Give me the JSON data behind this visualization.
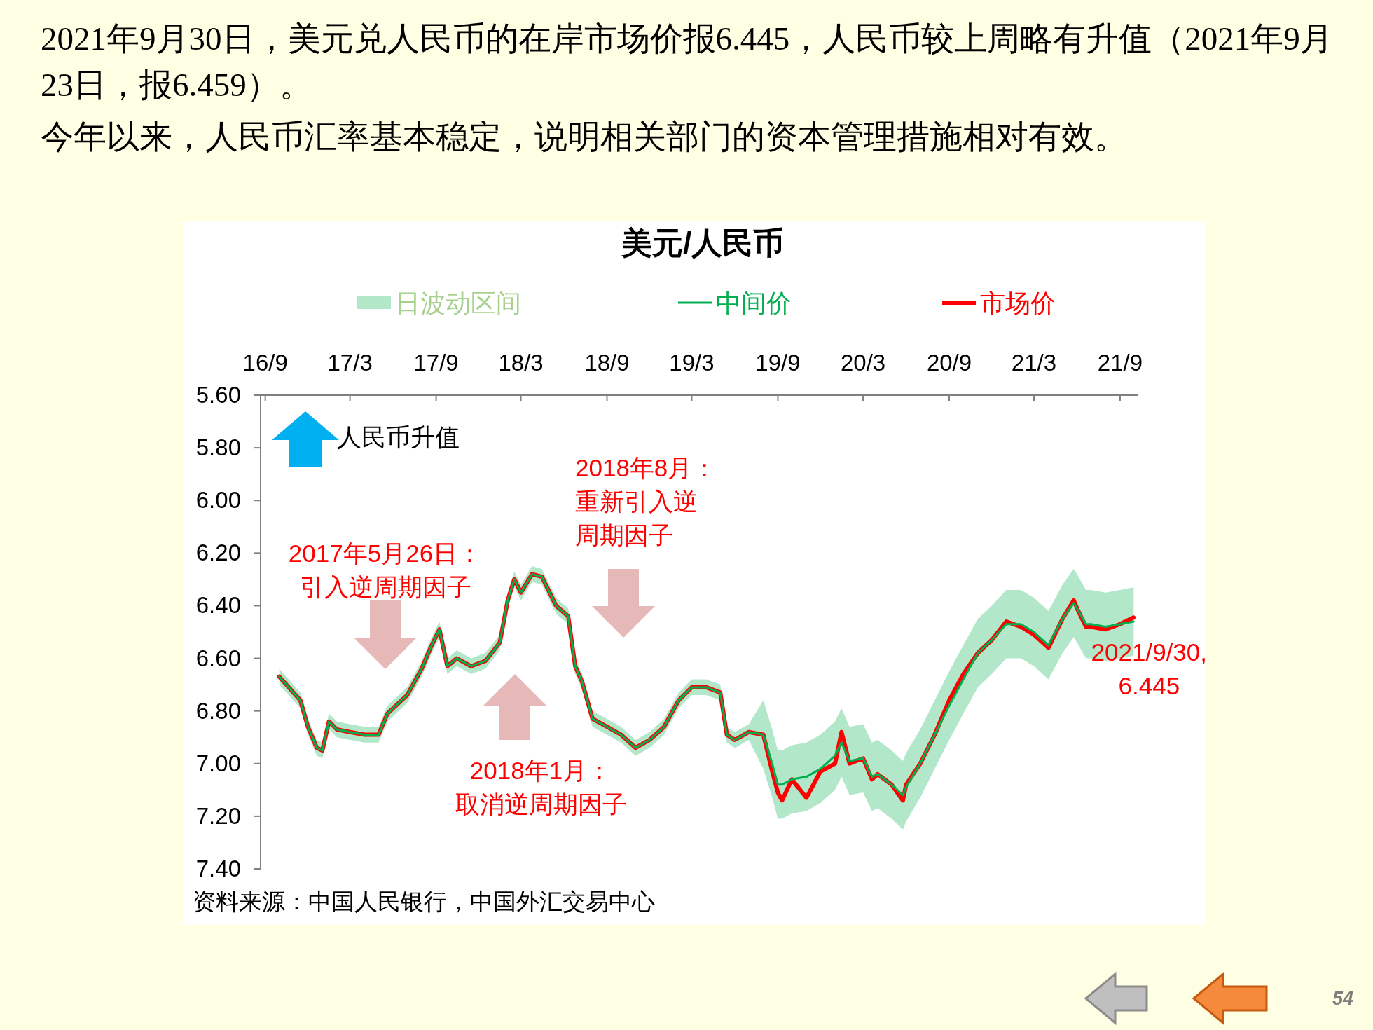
{
  "chart_data": {
    "type": "line",
    "title": "美元/人民币",
    "legend": "top",
    "grid": false,
    "xlim": [
      "2016-08-22",
      "2021-10-10"
    ],
    "xticks": [
      {
        "value": "2016-09-01",
        "label": "16/9"
      },
      {
        "value": "2017-03-01",
        "label": "17/3"
      },
      {
        "value": "2017-09-01",
        "label": "17/9"
      },
      {
        "value": "2018-03-01",
        "label": "18/3"
      },
      {
        "value": "2018-09-01",
        "label": "18/9"
      },
      {
        "value": "2019-03-01",
        "label": "19/3"
      },
      {
        "value": "2019-09-01",
        "label": "19/9"
      },
      {
        "value": "2020-03-01",
        "label": "20/3"
      },
      {
        "value": "2020-09-01",
        "label": "20/9"
      },
      {
        "value": "2021-03-01",
        "label": "21/3"
      },
      {
        "value": "2021-09-01",
        "label": "21/9"
      }
    ],
    "ylim": [
      7.4,
      5.6
    ],
    "yticks": [
      {
        "value": 5.6,
        "label": "5.60"
      },
      {
        "value": 5.8,
        "label": "5.80"
      },
      {
        "value": 6.0,
        "label": "6.00"
      },
      {
        "value": 6.2,
        "label": "6.20"
      },
      {
        "value": 6.4,
        "label": "6.40"
      },
      {
        "value": 6.6,
        "label": "6.60"
      },
      {
        "value": 6.8,
        "label": "6.80"
      },
      {
        "value": 7.0,
        "label": "7.00"
      },
      {
        "value": 7.2,
        "label": "7.20"
      },
      {
        "value": 7.4,
        "label": "7.40"
      }
    ],
    "series": [
      {
        "name": "中间价",
        "type": "line",
        "color": "#00b050",
        "x": [
          "2016-10-01",
          "2016-11-15",
          "2016-12-01",
          "2016-12-20",
          "2017-01-01",
          "2017-01-15",
          "2017-02-01",
          "2017-03-01",
          "2017-04-01",
          "2017-05-01",
          "2017-05-20",
          "2017-06-01",
          "2017-07-01",
          "2017-08-01",
          "2017-08-20",
          "2017-09-08",
          "2017-09-25",
          "2017-10-15",
          "2017-11-15",
          "2017-12-15",
          "2018-01-15",
          "2018-02-01",
          "2018-02-15",
          "2018-03-01",
          "2018-03-25",
          "2018-04-15",
          "2018-05-15",
          "2018-06-10",
          "2018-06-25",
          "2018-07-10",
          "2018-08-01",
          "2018-09-01",
          "2018-10-01",
          "2018-11-01",
          "2018-12-01",
          "2019-01-01",
          "2019-02-01",
          "2019-03-01",
          "2019-04-01",
          "2019-05-01",
          "2019-05-15",
          "2019-06-01",
          "2019-07-01",
          "2019-08-01",
          "2019-08-20",
          "2019-09-01",
          "2019-09-10",
          "2019-10-01",
          "2019-11-01",
          "2019-12-01",
          "2020-01-01",
          "2020-01-15",
          "2020-02-01",
          "2020-03-01",
          "2020-03-20",
          "2020-04-01",
          "2020-05-01",
          "2020-05-25",
          "2020-06-01",
          "2020-07-01",
          "2020-08-01",
          "2020-09-01",
          "2020-10-01",
          "2020-11-01",
          "2020-12-01",
          "2021-01-01",
          "2021-02-01",
          "2021-03-01",
          "2021-04-01",
          "2021-05-01",
          "2021-05-25",
          "2021-06-01",
          "2021-06-20",
          "2021-07-01",
          "2021-08-01",
          "2021-09-01",
          "2021-09-30"
        ],
        "values": [
          6.67,
          6.76,
          6.86,
          6.94,
          6.95,
          6.84,
          6.87,
          6.88,
          6.89,
          6.89,
          6.81,
          6.79,
          6.74,
          6.64,
          6.56,
          6.49,
          6.63,
          6.6,
          6.63,
          6.61,
          6.54,
          6.38,
          6.3,
          6.35,
          6.28,
          6.29,
          6.4,
          6.44,
          6.63,
          6.69,
          6.83,
          6.86,
          6.89,
          6.94,
          6.91,
          6.86,
          6.76,
          6.71,
          6.71,
          6.73,
          6.89,
          6.91,
          6.88,
          6.89,
          7.0,
          7.08,
          7.08,
          7.06,
          7.05,
          7.02,
          6.97,
          6.92,
          6.99,
          6.98,
          7.05,
          7.04,
          7.08,
          7.12,
          7.09,
          7.0,
          6.89,
          6.78,
          6.68,
          6.58,
          6.53,
          6.47,
          6.47,
          6.5,
          6.55,
          6.45,
          6.39,
          6.41,
          6.47,
          6.47,
          6.48,
          6.47,
          6.46
        ],
        "lower": [
          6.64,
          6.73,
          6.83,
          6.91,
          6.92,
          6.81,
          6.84,
          6.85,
          6.86,
          6.86,
          6.78,
          6.76,
          6.71,
          6.61,
          6.53,
          6.46,
          6.6,
          6.57,
          6.6,
          6.58,
          6.51,
          6.35,
          6.27,
          6.32,
          6.25,
          6.26,
          6.37,
          6.41,
          6.6,
          6.66,
          6.8,
          6.83,
          6.86,
          6.91,
          6.88,
          6.83,
          6.73,
          6.68,
          6.68,
          6.7,
          6.86,
          6.88,
          6.85,
          6.76,
          6.87,
          6.95,
          6.95,
          6.93,
          6.92,
          6.89,
          6.84,
          6.79,
          6.86,
          6.85,
          6.92,
          6.91,
          6.95,
          6.99,
          6.96,
          6.87,
          6.76,
          6.65,
          6.55,
          6.45,
          6.4,
          6.34,
          6.34,
          6.37,
          6.42,
          6.32,
          6.26,
          6.28,
          6.34,
          6.34,
          6.35,
          6.34,
          6.33
        ],
        "upper": [
          6.7,
          6.79,
          6.89,
          6.97,
          6.98,
          6.87,
          6.9,
          6.91,
          6.92,
          6.92,
          6.84,
          6.82,
          6.77,
          6.67,
          6.59,
          6.52,
          6.66,
          6.63,
          6.66,
          6.64,
          6.57,
          6.41,
          6.33,
          6.38,
          6.31,
          6.32,
          6.43,
          6.47,
          6.66,
          6.72,
          6.86,
          6.89,
          6.92,
          6.97,
          6.94,
          6.89,
          6.79,
          6.74,
          6.74,
          6.76,
          6.92,
          6.94,
          6.91,
          7.02,
          7.13,
          7.21,
          7.21,
          7.19,
          7.18,
          7.15,
          7.1,
          7.05,
          7.12,
          7.11,
          7.18,
          7.17,
          7.21,
          7.25,
          7.22,
          7.13,
          7.02,
          6.91,
          6.81,
          6.71,
          6.66,
          6.6,
          6.6,
          6.63,
          6.68,
          6.58,
          6.52,
          6.54,
          6.6,
          6.6,
          6.61,
          6.6,
          6.59
        ]
      },
      {
        "name": "市场价",
        "type": "line",
        "color": "#ff0000",
        "x": [
          "2016-10-01",
          "2016-11-15",
          "2016-12-01",
          "2016-12-20",
          "2017-01-01",
          "2017-01-15",
          "2017-02-01",
          "2017-03-01",
          "2017-04-01",
          "2017-05-01",
          "2017-05-20",
          "2017-06-01",
          "2017-07-01",
          "2017-08-01",
          "2017-08-20",
          "2017-09-08",
          "2017-09-25",
          "2017-10-15",
          "2017-11-15",
          "2017-12-15",
          "2018-01-15",
          "2018-02-01",
          "2018-02-15",
          "2018-03-01",
          "2018-03-25",
          "2018-04-15",
          "2018-05-15",
          "2018-06-10",
          "2018-06-25",
          "2018-07-10",
          "2018-08-01",
          "2018-09-01",
          "2018-10-01",
          "2018-11-01",
          "2018-12-01",
          "2019-01-01",
          "2019-02-01",
          "2019-03-01",
          "2019-04-01",
          "2019-05-01",
          "2019-05-15",
          "2019-06-01",
          "2019-07-01",
          "2019-08-01",
          "2019-08-20",
          "2019-09-01",
          "2019-09-10",
          "2019-10-01",
          "2019-11-01",
          "2019-12-01",
          "2020-01-01",
          "2020-01-15",
          "2020-02-01",
          "2020-03-01",
          "2020-03-20",
          "2020-04-01",
          "2020-05-01",
          "2020-05-25",
          "2020-06-01",
          "2020-07-01",
          "2020-08-01",
          "2020-09-01",
          "2020-10-01",
          "2020-11-01",
          "2020-12-01",
          "2021-01-01",
          "2021-02-01",
          "2021-03-01",
          "2021-04-01",
          "2021-05-01",
          "2021-05-25",
          "2021-06-01",
          "2021-06-20",
          "2021-07-01",
          "2021-08-01",
          "2021-09-01",
          "2021-09-30"
        ],
        "values": [
          6.67,
          6.76,
          6.86,
          6.94,
          6.95,
          6.84,
          6.87,
          6.88,
          6.89,
          6.89,
          6.81,
          6.79,
          6.74,
          6.64,
          6.56,
          6.49,
          6.63,
          6.6,
          6.63,
          6.61,
          6.54,
          6.38,
          6.3,
          6.35,
          6.28,
          6.29,
          6.4,
          6.44,
          6.63,
          6.69,
          6.83,
          6.86,
          6.89,
          6.94,
          6.91,
          6.86,
          6.76,
          6.71,
          6.71,
          6.73,
          6.89,
          6.91,
          6.88,
          6.89,
          7.03,
          7.11,
          7.14,
          7.06,
          7.13,
          7.03,
          7.0,
          6.88,
          7.0,
          6.98,
          7.06,
          7.04,
          7.08,
          7.14,
          7.08,
          7.0,
          6.89,
          6.76,
          6.66,
          6.58,
          6.53,
          6.46,
          6.48,
          6.51,
          6.56,
          6.45,
          6.38,
          6.41,
          6.48,
          6.48,
          6.49,
          6.47,
          6.445
        ]
      }
    ],
    "annotations": [
      "2021年9月30日，美元兑人民币的在岸市场价报6.445，人民币较上周略有升值（2021年9月23日，报6.459）。",
      "今年以来，人民币汇率基本稳定，说明相关部门的资本管理措施相对有效。",
      "2017年5月26日：引入逆周期因子",
      "2018年1月：取消逆周期因子",
      "2018年8月：重新引入逆周期因子",
      {
        "text": "2021/9/30,\n6.445",
        "x": "2021-09-30",
        "y": 6.445
      },
      "日波动区间",
      "人民币升值",
      "资料来源：中国人民银行，中国外汇交易中心",
      "54"
    ]
  }
}
